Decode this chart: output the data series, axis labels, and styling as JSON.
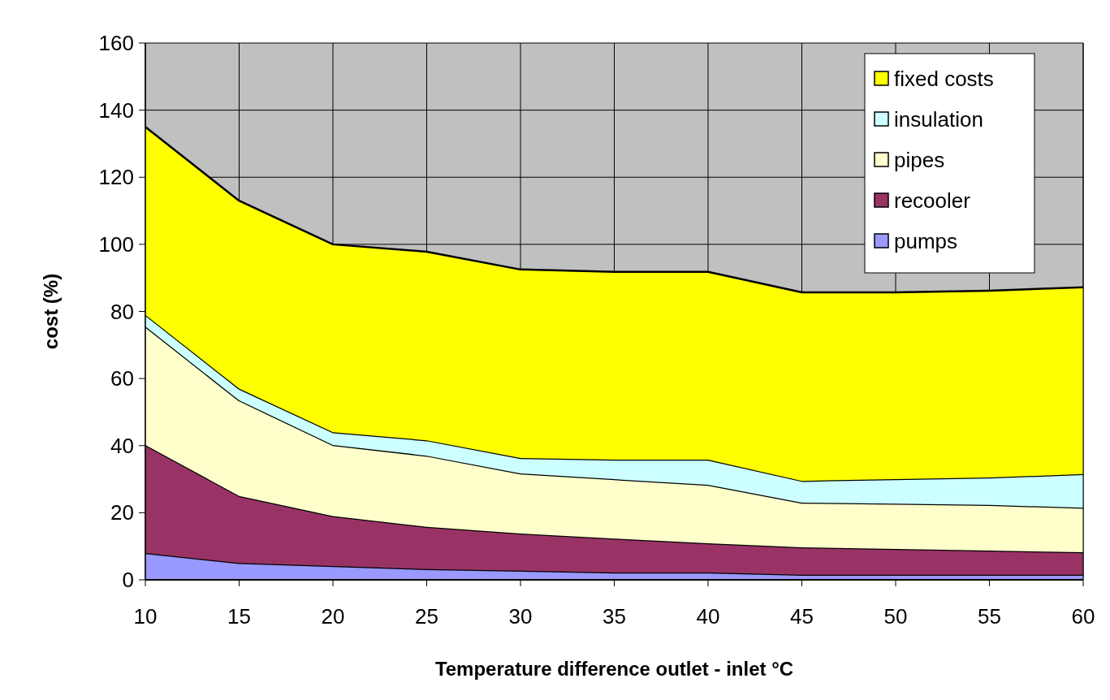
{
  "chart_data": {
    "type": "area",
    "stacked": true,
    "xlabel": "Temperature difference outlet - inlet  °C",
    "ylabel": "cost (%)",
    "x": [
      10,
      15,
      20,
      25,
      30,
      35,
      40,
      45,
      50,
      55,
      60
    ],
    "xlim": [
      10,
      60
    ],
    "xticks": [
      10,
      15,
      20,
      25,
      30,
      35,
      40,
      45,
      50,
      55,
      60
    ],
    "ylim": [
      0,
      160
    ],
    "yticks": [
      0,
      20,
      40,
      60,
      80,
      100,
      120,
      140,
      160
    ],
    "grid": true,
    "legend": "top right",
    "series": [
      {
        "name": "pumps",
        "color": "#9999ff",
        "values": [
          8,
          5,
          4.1,
          3.2,
          2.7,
          2.2,
          2.2,
          1.5,
          1.5,
          1.5,
          1.5
        ]
      },
      {
        "name": "recooler",
        "color": "#993366",
        "values": [
          32.2,
          20,
          14.9,
          12.6,
          11.1,
          10.1,
          8.7,
          8.2,
          7.7,
          7.2,
          6.7
        ]
      },
      {
        "name": "pipes",
        "color": "#ffffcc",
        "values": [
          35.3,
          28.5,
          21.2,
          21.2,
          17.9,
          17.7,
          17.4,
          13.3,
          13.5,
          13.6,
          13.3
        ]
      },
      {
        "name": "insulation",
        "color": "#ccffff",
        "values": [
          3.5,
          3.5,
          3.8,
          4.6,
          4.6,
          5.8,
          7.5,
          6.5,
          7.3,
          8.2,
          10
        ]
      },
      {
        "name": "fixed costs",
        "color": "#ffff00",
        "values": [
          56,
          56,
          56,
          56.2,
          56.2,
          56,
          56,
          56.2,
          55.7,
          55.7,
          55.7
        ]
      }
    ]
  }
}
